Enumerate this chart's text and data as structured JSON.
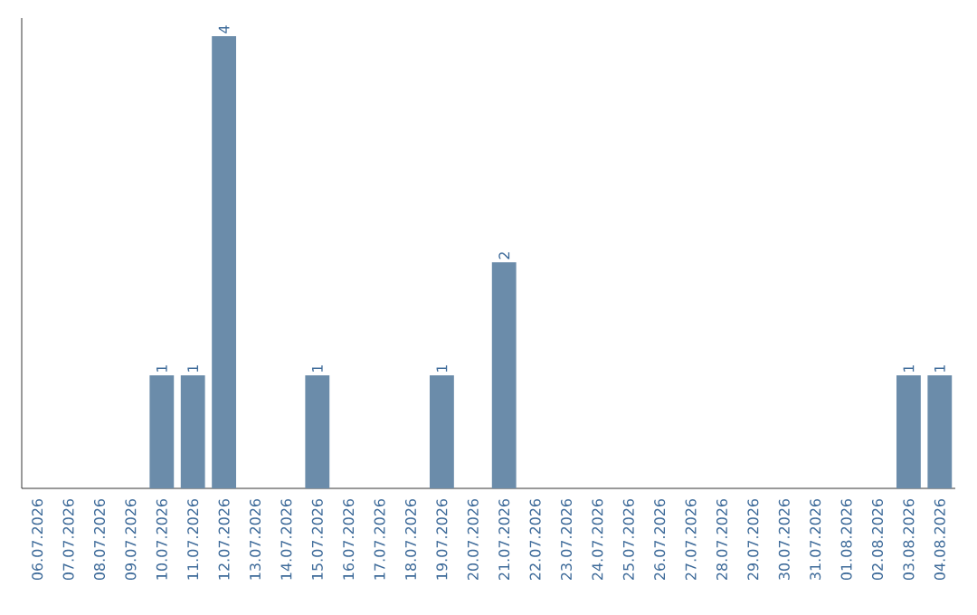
{
  "chart_data": {
    "type": "bar",
    "color": "#6b8caa",
    "categories": [
      "06.07.2026",
      "07.07.2026",
      "08.07.2026",
      "09.07.2026",
      "10.07.2026",
      "11.07.2026",
      "12.07.2026",
      "13.07.2026",
      "14.07.2026",
      "15.07.2026",
      "16.07.2026",
      "17.07.2026",
      "18.07.2026",
      "19.07.2026",
      "20.07.2026",
      "21.07.2026",
      "22.07.2026",
      "23.07.2026",
      "24.07.2026",
      "25.07.2026",
      "26.07.2026",
      "27.07.2026",
      "28.07.2026",
      "29.07.2026",
      "30.07.2026",
      "31.07.2026",
      "01.08.2026",
      "02.08.2026",
      "03.08.2026",
      "04.08.2026"
    ],
    "values": [
      0,
      0,
      0,
      0,
      1,
      1,
      4,
      0,
      0,
      1,
      0,
      0,
      0,
      1,
      0,
      2,
      0,
      0,
      0,
      0,
      0,
      0,
      0,
      0,
      0,
      0,
      0,
      0,
      1,
      1
    ],
    "value_labels": [
      null,
      null,
      null,
      null,
      "1",
      "1",
      "4",
      null,
      null,
      "1",
      null,
      null,
      null,
      "1",
      null,
      "2",
      null,
      null,
      null,
      null,
      null,
      null,
      null,
      null,
      null,
      null,
      null,
      null,
      "1",
      "1"
    ],
    "data_labels": false
  }
}
